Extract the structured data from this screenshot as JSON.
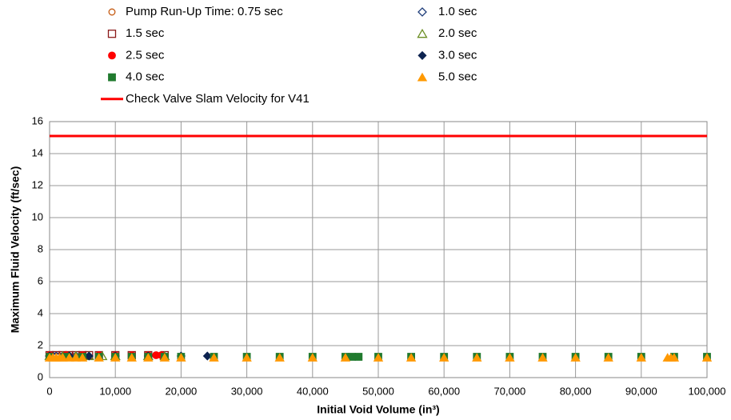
{
  "chart_data": {
    "type": "scatter",
    "xlabel": "Initial Void Volume (in³)",
    "ylabel": "Maximum Fluid Velocity (ft/sec)",
    "xlim": [
      0,
      100000
    ],
    "ylim": [
      0,
      16
    ],
    "xticks": [
      0,
      {
        "value": 10000,
        "label": "10,000"
      },
      {
        "value": 20000,
        "label": "20,000"
      },
      {
        "value": 30000,
        "label": "30,000"
      },
      {
        "value": 40000,
        "label": "40,000"
      },
      {
        "value": 50000,
        "label": "50,000"
      },
      {
        "value": 60000,
        "label": "60,000"
      },
      {
        "value": 70000,
        "label": "70,000"
      },
      {
        "value": 80000,
        "label": "80,000"
      },
      {
        "value": 90000,
        "label": "90,000"
      },
      {
        "value": 100000,
        "label": "100,000"
      }
    ],
    "yticks": [
      0,
      2,
      4,
      6,
      8,
      10,
      12,
      14,
      16
    ],
    "grid": true,
    "series": [
      {
        "name": "Pump Run-Up Time: 0.75 sec",
        "color": "#c55a11",
        "marker": "circle",
        "filled": false,
        "x": [
          0,
          500,
          1000,
          1500,
          2000,
          2500,
          3000,
          4000,
          5000
        ],
        "values": [
          1.35,
          1.35,
          1.35,
          1.35,
          1.35,
          1.35,
          1.35,
          1.35,
          1.35
        ]
      },
      {
        "name": "1.0 sec",
        "color": "#1f3d7a",
        "marker": "diamond",
        "filled": false,
        "x": [
          0,
          500,
          1000,
          2000,
          3000,
          4000,
          5000
        ],
        "values": [
          1.35,
          1.35,
          1.35,
          1.35,
          1.35,
          1.35,
          1.35
        ]
      },
      {
        "name": "1.5 sec",
        "color": "#8b1a1a",
        "marker": "square",
        "filled": false,
        "x": [
          0,
          1000,
          2000,
          3000,
          4000,
          5000,
          6000,
          7500,
          10000,
          12500,
          15000,
          17500
        ],
        "values": [
          1.4,
          1.4,
          1.4,
          1.4,
          1.4,
          1.4,
          1.4,
          1.4,
          1.4,
          1.4,
          1.4,
          1.4
        ]
      },
      {
        "name": "2.0 sec",
        "color": "#6b8e23",
        "marker": "triangle",
        "filled": false,
        "x": [
          0,
          2000,
          4000,
          6000,
          8000,
          10000,
          15000,
          17500
        ],
        "values": [
          1.35,
          1.35,
          1.35,
          1.35,
          1.35,
          1.35,
          1.35,
          1.35
        ]
      },
      {
        "name": "2.5 sec",
        "color": "#ff0000",
        "marker": "circle",
        "filled": true,
        "x": [
          0,
          2500,
          5000,
          7500,
          10000,
          12500,
          15000,
          16200,
          17000
        ],
        "values": [
          1.4,
          1.4,
          1.4,
          1.4,
          1.4,
          1.4,
          1.4,
          1.4,
          1.4
        ]
      },
      {
        "name": "3.0 sec",
        "color": "#0d2350",
        "marker": "diamond",
        "filled": true,
        "x": [
          0,
          3000,
          6000,
          10000,
          15000,
          20000,
          24000
        ],
        "values": [
          1.35,
          1.35,
          1.35,
          1.35,
          1.35,
          1.35,
          1.35
        ]
      },
      {
        "name": "4.0 sec",
        "color": "#217a2e",
        "marker": "square",
        "filled": true,
        "x": [
          0,
          2500,
          5000,
          7500,
          10000,
          12500,
          15000,
          17500,
          20000,
          25000,
          30000,
          35000,
          40000,
          45000,
          46000,
          47000,
          50000,
          55000,
          60000,
          65000,
          70000,
          75000,
          80000,
          85000,
          90000,
          95000,
          100000
        ],
        "values": [
          1.3,
          1.3,
          1.3,
          1.3,
          1.3,
          1.3,
          1.3,
          1.3,
          1.3,
          1.3,
          1.3,
          1.3,
          1.3,
          1.3,
          1.3,
          1.3,
          1.3,
          1.3,
          1.3,
          1.3,
          1.3,
          1.3,
          1.3,
          1.3,
          1.3,
          1.3,
          1.3
        ]
      },
      {
        "name": "5.0 sec",
        "color": "#ff9900",
        "marker": "triangle",
        "filled": true,
        "x": [
          0,
          500,
          1000,
          1500,
          2000,
          3000,
          4000,
          5000,
          7500,
          10000,
          12500,
          15000,
          17500,
          20000,
          25000,
          30000,
          35000,
          40000,
          45000,
          50000,
          55000,
          60000,
          65000,
          70000,
          75000,
          80000,
          85000,
          90000,
          94000,
          94500,
          95000,
          100000
        ],
        "values": [
          1.25,
          1.25,
          1.25,
          1.25,
          1.25,
          1.25,
          1.25,
          1.25,
          1.25,
          1.25,
          1.25,
          1.25,
          1.25,
          1.25,
          1.25,
          1.25,
          1.25,
          1.25,
          1.25,
          1.25,
          1.25,
          1.25,
          1.25,
          1.25,
          1.25,
          1.25,
          1.25,
          1.25,
          1.25,
          1.25,
          1.25,
          1.25
        ]
      },
      {
        "name": "Check Valve Slam Velocity for V41",
        "color": "#ff0000",
        "marker": "line",
        "x": [
          0,
          100000
        ],
        "values": [
          15.1,
          15.1
        ]
      }
    ]
  }
}
